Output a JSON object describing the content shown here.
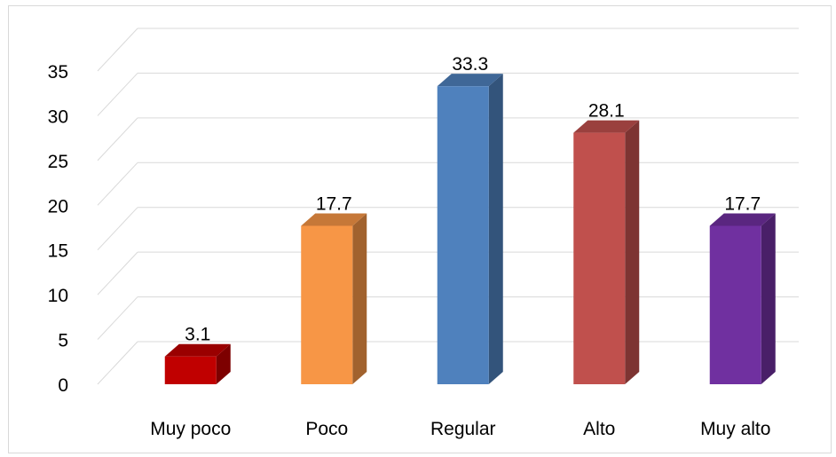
{
  "chart_data": {
    "type": "bar",
    "style": "3d-column",
    "title": "",
    "xlabel": "",
    "ylabel": "",
    "categories": [
      "Muy poco",
      "Poco",
      "Regular",
      "Alto",
      "Muy alto"
    ],
    "values": [
      3.1,
      17.7,
      33.3,
      28.1,
      17.7
    ],
    "value_labels": [
      "3.1",
      "17.7",
      "33.3",
      "28.1",
      "17.7"
    ],
    "colors": [
      "#c00000",
      "#f79646",
      "#4f81bd",
      "#c0504d",
      "#7030a0"
    ],
    "ylim": [
      0,
      35
    ],
    "yticks": [
      "0",
      "5",
      "10",
      "15",
      "20",
      "25",
      "30",
      "35"
    ],
    "grid": true,
    "legend": "none"
  }
}
